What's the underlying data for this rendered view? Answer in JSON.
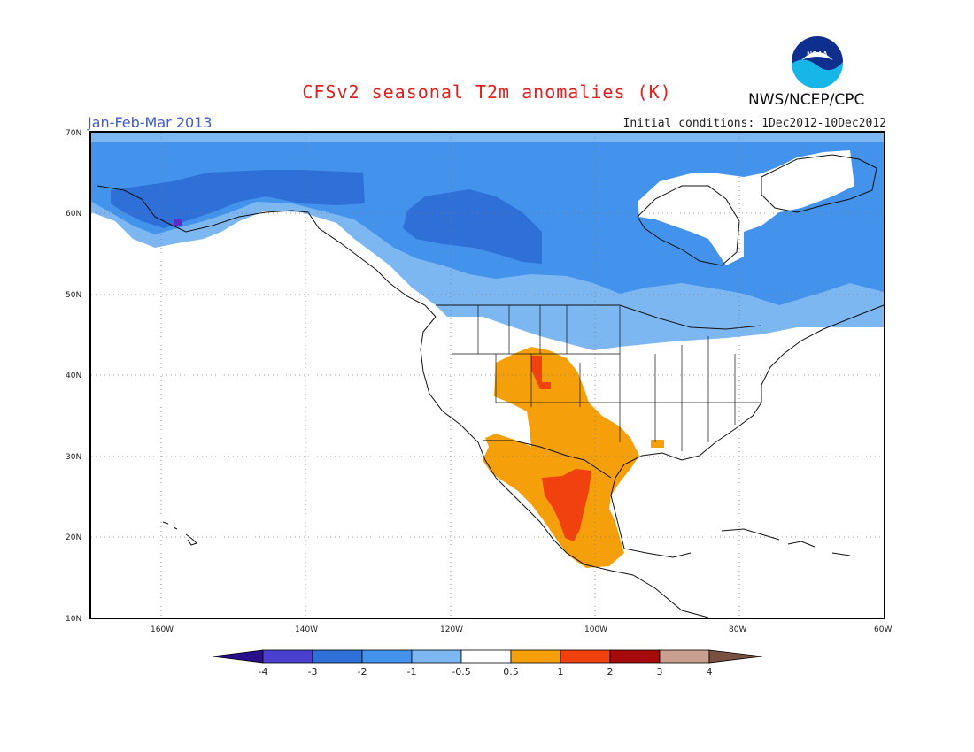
{
  "header": {
    "title": "CFSv2 seasonal T2m anomalies (K)",
    "period": "Jan-Feb-Mar 2013",
    "initial_conditions": "Initial conditions: 1Dec2012-10Dec2012",
    "agency": "NWS/NCEP/CPC",
    "logo_text": "NOAA"
  },
  "map": {
    "lat_ticks": [
      "70N",
      "60N",
      "50N",
      "40N",
      "30N",
      "20N",
      "10N"
    ],
    "lon_ticks": [
      "160W",
      "140W",
      "120W",
      "100W",
      "80W",
      "60W"
    ],
    "extent": {
      "lon_min": -172,
      "lon_max": -60,
      "lat_min": 10,
      "lat_max": 70
    },
    "gridlines": "dotted"
  },
  "colorbar": {
    "labels": [
      "-4",
      "-3",
      "-2",
      "-1",
      "-0.5",
      "0.5",
      "1",
      "2",
      "3",
      "4"
    ],
    "colors": [
      "#2a0f8c",
      "#4b3fcf",
      "#2f6fd8",
      "#4393ec",
      "#7db7f2",
      "#ffffff",
      "#f5a00a",
      "#f0410f",
      "#a70a0a",
      "#c99f90",
      "#7a5040"
    ]
  },
  "colors": {
    "cold_3": "#2f6fd8",
    "cold_2": "#4393ec",
    "cold_1": "#7db7f2",
    "warm_1": "#f5a00a",
    "warm_2": "#f0410f",
    "coldest": "#5a2fc8"
  }
}
